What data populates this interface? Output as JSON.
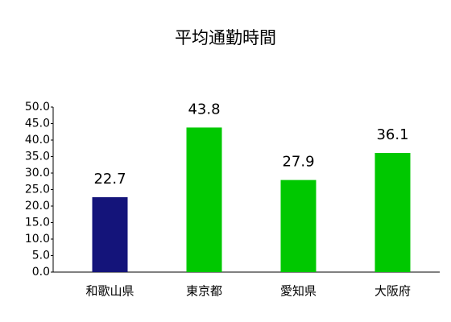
{
  "chart_data": {
    "type": "bar",
    "title": "平均通勤時間",
    "categories": [
      "和歌山県",
      "東京都",
      "愛知県",
      "大阪府"
    ],
    "values": [
      22.7,
      43.8,
      27.9,
      36.1
    ],
    "colors": [
      "#14147a",
      "#00c800",
      "#00c800",
      "#00c800"
    ],
    "ylim": [
      0,
      50
    ],
    "yticks": [
      {
        "value": 0,
        "label": "0.0"
      },
      {
        "value": 5,
        "label": "5.0"
      },
      {
        "value": 10,
        "label": "10.0"
      },
      {
        "value": 15,
        "label": "15.0"
      },
      {
        "value": 20,
        "label": "20.0"
      },
      {
        "value": 25,
        "label": "25.0"
      },
      {
        "value": 30,
        "label": "30.0"
      },
      {
        "value": 35,
        "label": "35.0"
      },
      {
        "value": 40,
        "label": "40.0"
      },
      {
        "value": 45,
        "label": "45.0"
      },
      {
        "value": 50,
        "label": "50.0"
      }
    ],
    "grid": false
  }
}
